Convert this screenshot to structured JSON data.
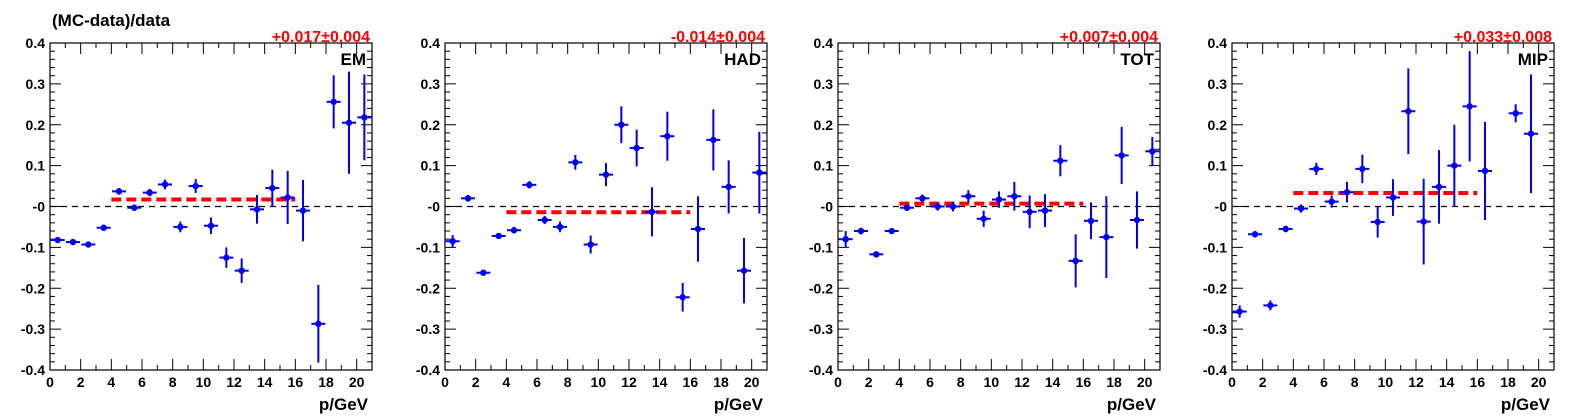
{
  "colors": {
    "points": "#0000ee",
    "fit": "#ff0000",
    "fit_label": "#ff0000",
    "axis": "#000000",
    "zero_line": "#000000"
  },
  "chart_data": [
    {
      "type": "scatter",
      "panel_label": "EM",
      "fit_label": "+0.017±0.004",
      "ylabel": "(MC-data)/data",
      "xlabel": "p/GeV",
      "xlim": [
        0,
        21
      ],
      "ylim": [
        -0.4,
        0.4
      ],
      "xticks": [
        "0",
        "2",
        "4",
        "6",
        "8",
        "10",
        "12",
        "14",
        "16",
        "18",
        "20"
      ],
      "yticks": [
        "-0.4",
        "-0.3",
        "-0.2",
        "-0.1",
        "-0",
        "0.1",
        "0.2",
        "0.3",
        "0.4"
      ],
      "fit": {
        "x_from": 4,
        "x_to": 16,
        "y": 0.017
      },
      "zero_line": true,
      "points": [
        {
          "x": 0.5,
          "y": -0.082,
          "err": 0.006
        },
        {
          "x": 1.5,
          "y": -0.087,
          "err": 0.005
        },
        {
          "x": 2.5,
          "y": -0.093,
          "err": 0.006
        },
        {
          "x": 3.5,
          "y": -0.052,
          "err": 0.006
        },
        {
          "x": 4.5,
          "y": 0.037,
          "err": 0.008
        },
        {
          "x": 5.5,
          "y": -0.003,
          "err": 0.008
        },
        {
          "x": 6.5,
          "y": 0.034,
          "err": 0.009
        },
        {
          "x": 7.5,
          "y": 0.054,
          "err": 0.012
        },
        {
          "x": 8.5,
          "y": -0.05,
          "err": 0.013
        },
        {
          "x": 9.5,
          "y": 0.05,
          "err": 0.017
        },
        {
          "x": 10.5,
          "y": -0.047,
          "err": 0.02
        },
        {
          "x": 11.5,
          "y": -0.125,
          "err": 0.025
        },
        {
          "x": 12.5,
          "y": -0.157,
          "err": 0.03
        },
        {
          "x": 13.5,
          "y": -0.007,
          "err": 0.035
        },
        {
          "x": 14.5,
          "y": 0.045,
          "err": 0.045
        },
        {
          "x": 15.5,
          "y": 0.022,
          "err": 0.065
        },
        {
          "x": 16.5,
          "y": -0.01,
          "err": 0.075
        },
        {
          "x": 17.5,
          "y": -0.287,
          "err": 0.095
        },
        {
          "x": 18.5,
          "y": 0.256,
          "err": 0.065
        },
        {
          "x": 19.5,
          "y": 0.205,
          "err": 0.125
        },
        {
          "x": 20.5,
          "y": 0.218,
          "err": 0.105
        }
      ]
    },
    {
      "type": "scatter",
      "panel_label": "HAD",
      "fit_label": "-0.014±0.004",
      "xlabel": "p/GeV",
      "xlim": [
        0,
        21
      ],
      "ylim": [
        -0.4,
        0.4
      ],
      "xticks": [
        "0",
        "2",
        "4",
        "6",
        "8",
        "10",
        "12",
        "14",
        "16",
        "18",
        "20"
      ],
      "yticks": [
        "-0.4",
        "-0.3",
        "-0.2",
        "-0.1",
        "-0",
        "0.1",
        "0.2",
        "0.3",
        "0.4"
      ],
      "fit": {
        "x_from": 4,
        "x_to": 16,
        "y": -0.014
      },
      "zero_line": true,
      "points": [
        {
          "x": 0.5,
          "y": -0.085,
          "err": 0.015
        },
        {
          "x": 1.5,
          "y": 0.02,
          "err": 0.008
        },
        {
          "x": 2.5,
          "y": -0.162,
          "err": 0.007
        },
        {
          "x": 3.5,
          "y": -0.072,
          "err": 0.007
        },
        {
          "x": 4.5,
          "y": -0.058,
          "err": 0.008
        },
        {
          "x": 5.5,
          "y": 0.053,
          "err": 0.009
        },
        {
          "x": 6.5,
          "y": -0.033,
          "err": 0.01
        },
        {
          "x": 7.5,
          "y": -0.05,
          "err": 0.013
        },
        {
          "x": 8.5,
          "y": 0.108,
          "err": 0.018
        },
        {
          "x": 9.5,
          "y": -0.093,
          "err": 0.022
        },
        {
          "x": 10.5,
          "y": 0.078,
          "err": 0.028
        },
        {
          "x": 11.5,
          "y": 0.2,
          "err": 0.045
        },
        {
          "x": 12.5,
          "y": 0.143,
          "err": 0.045
        },
        {
          "x": 13.5,
          "y": -0.013,
          "err": 0.06
        },
        {
          "x": 14.5,
          "y": 0.172,
          "err": 0.06
        },
        {
          "x": 15.5,
          "y": -0.222,
          "err": 0.035
        },
        {
          "x": 16.5,
          "y": -0.055,
          "err": 0.08
        },
        {
          "x": 17.5,
          "y": 0.163,
          "err": 0.075
        },
        {
          "x": 18.5,
          "y": 0.048,
          "err": 0.065
        },
        {
          "x": 19.5,
          "y": -0.157,
          "err": 0.08
        },
        {
          "x": 20.5,
          "y": 0.083,
          "err": 0.1
        }
      ]
    },
    {
      "type": "scatter",
      "panel_label": "TOT",
      "fit_label": "+0.007±0.004",
      "xlabel": "p/GeV",
      "xlim": [
        0,
        21
      ],
      "ylim": [
        -0.4,
        0.4
      ],
      "xticks": [
        "0",
        "2",
        "4",
        "6",
        "8",
        "10",
        "12",
        "14",
        "16",
        "18",
        "20"
      ],
      "yticks": [
        "-0.4",
        "-0.3",
        "-0.2",
        "-0.1",
        "-0",
        "0.1",
        "0.2",
        "0.3",
        "0.4"
      ],
      "fit": {
        "x_from": 4,
        "x_to": 16,
        "y": 0.007
      },
      "zero_line": true,
      "points": [
        {
          "x": 0.5,
          "y": -0.08,
          "err": 0.02
        },
        {
          "x": 1.5,
          "y": -0.06,
          "err": 0.008
        },
        {
          "x": 2.5,
          "y": -0.117,
          "err": 0.007
        },
        {
          "x": 3.5,
          "y": -0.06,
          "err": 0.007
        },
        {
          "x": 4.5,
          "y": -0.003,
          "err": 0.008
        },
        {
          "x": 5.5,
          "y": 0.02,
          "err": 0.009
        },
        {
          "x": 6.5,
          "y": 0.0,
          "err": 0.01
        },
        {
          "x": 7.5,
          "y": 0.0,
          "err": 0.012
        },
        {
          "x": 8.5,
          "y": 0.025,
          "err": 0.015
        },
        {
          "x": 9.5,
          "y": -0.03,
          "err": 0.02
        },
        {
          "x": 10.5,
          "y": 0.017,
          "err": 0.02
        },
        {
          "x": 11.5,
          "y": 0.025,
          "err": 0.035
        },
        {
          "x": 12.5,
          "y": -0.013,
          "err": 0.04
        },
        {
          "x": 13.5,
          "y": -0.01,
          "err": 0.04
        },
        {
          "x": 14.5,
          "y": 0.112,
          "err": 0.038
        },
        {
          "x": 15.5,
          "y": -0.133,
          "err": 0.065
        },
        {
          "x": 16.5,
          "y": -0.035,
          "err": 0.045
        },
        {
          "x": 17.5,
          "y": -0.075,
          "err": 0.1
        },
        {
          "x": 18.5,
          "y": 0.125,
          "err": 0.07
        },
        {
          "x": 19.5,
          "y": -0.033,
          "err": 0.07
        },
        {
          "x": 20.5,
          "y": 0.135,
          "err": 0.035
        }
      ]
    },
    {
      "type": "scatter",
      "panel_label": "MIP",
      "fit_label": "+0.033±0.008",
      "xlabel": "p/GeV",
      "xlim": [
        0,
        21
      ],
      "ylim": [
        -0.4,
        0.4
      ],
      "xticks": [
        "0",
        "2",
        "4",
        "6",
        "8",
        "10",
        "12",
        "14",
        "16",
        "18",
        "20"
      ],
      "yticks": [
        "-0.4",
        "-0.3",
        "-0.2",
        "-0.1",
        "-0",
        "0.1",
        "0.2",
        "0.3",
        "0.4"
      ],
      "fit": {
        "x_from": 4,
        "x_to": 16,
        "y": 0.033
      },
      "zero_line": true,
      "points": [
        {
          "x": 0.5,
          "y": -0.257,
          "err": 0.015
        },
        {
          "x": 1.5,
          "y": -0.068,
          "err": 0.008
        },
        {
          "x": 2.5,
          "y": -0.242,
          "err": 0.012
        },
        {
          "x": 3.5,
          "y": -0.055,
          "err": 0.008
        },
        {
          "x": 4.5,
          "y": -0.005,
          "err": 0.01
        },
        {
          "x": 5.5,
          "y": 0.092,
          "err": 0.015
        },
        {
          "x": 6.5,
          "y": 0.012,
          "err": 0.015
        },
        {
          "x": 7.5,
          "y": 0.035,
          "err": 0.025
        },
        {
          "x": 8.5,
          "y": 0.092,
          "err": 0.035
        },
        {
          "x": 9.5,
          "y": -0.038,
          "err": 0.038
        },
        {
          "x": 10.5,
          "y": 0.022,
          "err": 0.045
        },
        {
          "x": 11.5,
          "y": 0.233,
          "err": 0.105
        },
        {
          "x": 12.5,
          "y": -0.037,
          "err": 0.105
        },
        {
          "x": 13.5,
          "y": 0.048,
          "err": 0.09
        },
        {
          "x": 14.5,
          "y": 0.1,
          "err": 0.1
        },
        {
          "x": 15.5,
          "y": 0.245,
          "err": 0.135
        },
        {
          "x": 16.5,
          "y": 0.087,
          "err": 0.12
        },
        {
          "x": 18.5,
          "y": 0.228,
          "err": 0.022
        },
        {
          "x": 19.5,
          "y": 0.178,
          "err": 0.145
        }
      ]
    }
  ]
}
